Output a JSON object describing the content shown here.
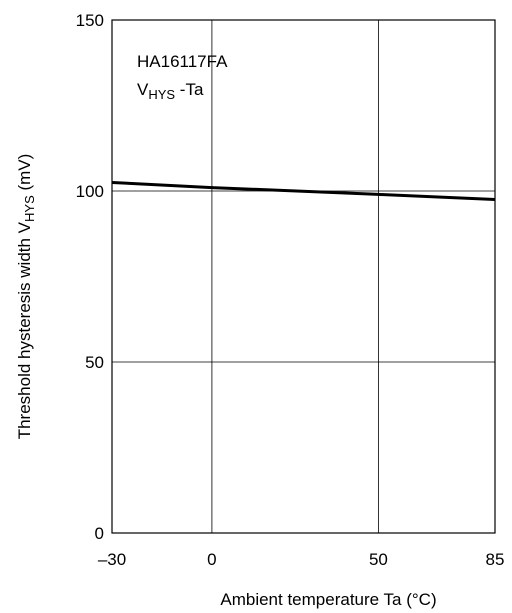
{
  "chart_data": {
    "type": "line",
    "annotation": {
      "line1": "HA16117FA",
      "line2_main": "V",
      "line2_sub": "HYS",
      "line2_rest": " -Ta"
    },
    "xlabel": "Ambient temperature  Ta  (°C)",
    "ylabel": {
      "main": "Threshold hysteresis width  V",
      "sub": "HYS",
      "rest": "  (mV)"
    },
    "xlim": [
      -30,
      85
    ],
    "ylim": [
      0,
      150
    ],
    "x_ticks": [
      -30,
      0,
      50,
      85
    ],
    "x_tick_labels": [
      "–30",
      "0",
      "50",
      "85"
    ],
    "y_ticks": [
      0,
      50,
      100,
      150
    ],
    "y_tick_labels": [
      "0",
      "50",
      "100",
      "150"
    ],
    "grid": true,
    "series": [
      {
        "x": [
          -30,
          0,
          50,
          85
        ],
        "y": [
          102.5,
          101.0,
          99.0,
          97.5
        ]
      }
    ]
  }
}
